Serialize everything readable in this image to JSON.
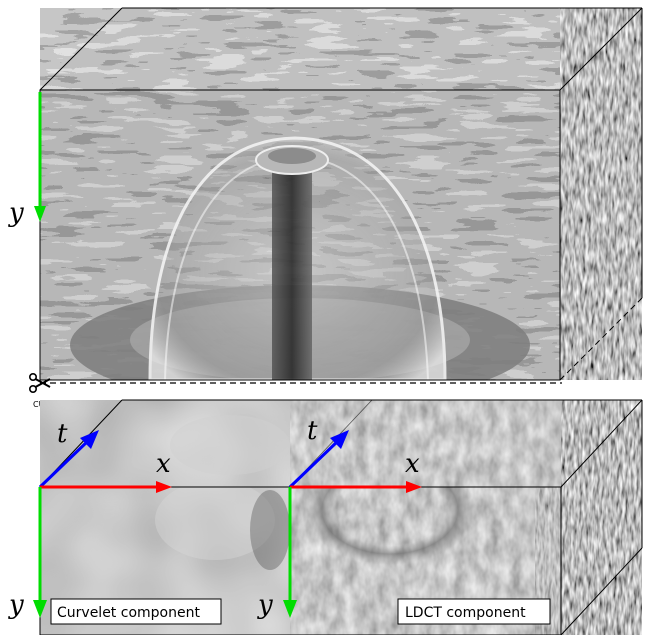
{
  "labels": {
    "cut": "CUT",
    "curvelet": "Curvelet component",
    "ldct": "LDCT component"
  },
  "axes": {
    "top_y": "y",
    "left_t": "t",
    "left_x": "x",
    "left_y": "y",
    "right_t": "t",
    "right_x": "x",
    "right_y": "y"
  },
  "colors": {
    "x_axis": "#ff0000",
    "y_axis": "#00dd00",
    "t_axis": "#0000ff",
    "label_box": "#ffffff",
    "edge": "#000000"
  },
  "icons": {
    "cut": "scissors-icon"
  }
}
